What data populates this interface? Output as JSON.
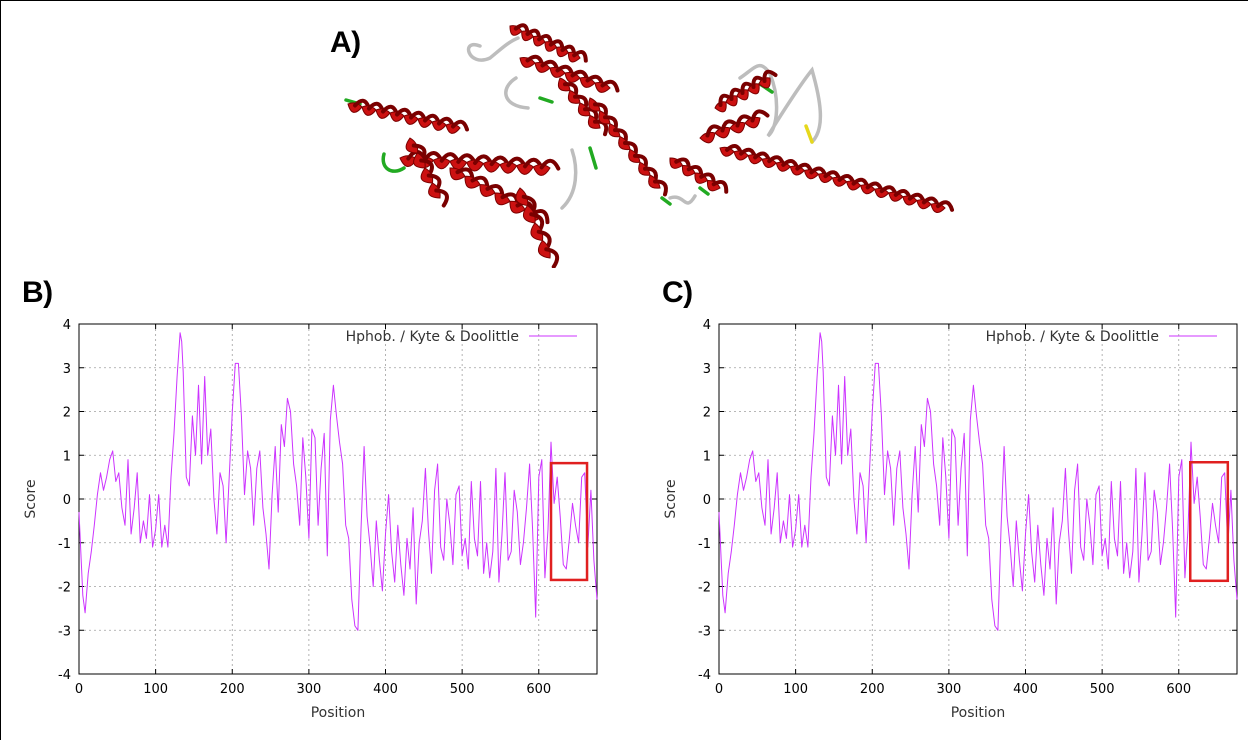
{
  "panels": {
    "a_label": "A)",
    "b_label": "B)",
    "c_label": "C)"
  },
  "structure": {
    "description_colors": {
      "helix": "#cc1111",
      "helix_dark": "#7a0000",
      "coil": "#bdbdbd",
      "turn": "#22aa22",
      "strand": "#e6d81c"
    }
  },
  "colors": {
    "series": "#cc33ff",
    "highlight_box": "#e02020",
    "grid": "#a0a0a0"
  },
  "chart_data": [
    {
      "id": "B",
      "type": "line",
      "title": "",
      "xlabel": "Position",
      "ylabel": "Score",
      "xlim": [
        0,
        676
      ],
      "ylim": [
        -4,
        4
      ],
      "xticks": [
        0,
        100,
        200,
        300,
        400,
        500,
        600
      ],
      "yticks": [
        -4,
        -3,
        -2,
        -1,
        0,
        1,
        2,
        3,
        4
      ],
      "grid": true,
      "legend": {
        "placement": "top-right",
        "entries": [
          "Hphob. / Kyte & Doolittle"
        ]
      },
      "highlight_region": {
        "x": [
          616,
          663
        ],
        "y": [
          -1.85,
          0.82
        ]
      },
      "series": [
        {
          "name": "Hphob. / Kyte & Doolittle",
          "x": [
            0,
            5,
            8,
            12,
            16,
            20,
            24,
            28,
            32,
            36,
            40,
            44,
            48,
            52,
            56,
            60,
            64,
            68,
            72,
            76,
            80,
            84,
            88,
            92,
            96,
            100,
            104,
            108,
            112,
            116,
            120,
            124,
            128,
            132,
            134,
            136,
            140,
            144,
            148,
            152,
            156,
            160,
            164,
            168,
            172,
            176,
            180,
            184,
            188,
            192,
            196,
            200,
            204,
            208,
            212,
            216,
            220,
            224,
            228,
            232,
            236,
            240,
            244,
            248,
            252,
            256,
            260,
            264,
            268,
            272,
            276,
            280,
            284,
            288,
            292,
            296,
            300,
            304,
            308,
            312,
            316,
            320,
            324,
            328,
            332,
            336,
            340,
            344,
            348,
            352,
            356,
            360,
            364,
            368,
            372,
            376,
            380,
            384,
            388,
            392,
            396,
            400,
            404,
            408,
            412,
            416,
            420,
            424,
            428,
            432,
            436,
            440,
            444,
            448,
            452,
            456,
            460,
            464,
            468,
            472,
            476,
            480,
            484,
            488,
            492,
            496,
            500,
            504,
            508,
            512,
            516,
            520,
            524,
            528,
            532,
            536,
            540,
            544,
            548,
            552,
            556,
            560,
            564,
            568,
            572,
            576,
            580,
            584,
            588,
            592,
            596,
            600,
            604,
            608,
            612,
            616,
            620,
            624,
            628,
            632,
            636,
            640,
            644,
            648,
            652,
            656,
            660,
            664,
            668,
            672,
            676
          ],
          "values": [
            -0.3,
            -2.2,
            -2.6,
            -1.7,
            -1.2,
            -0.6,
            0.1,
            0.6,
            0.2,
            0.5,
            0.9,
            1.1,
            0.4,
            0.6,
            -0.2,
            -0.6,
            0.9,
            -0.8,
            -0.2,
            0.6,
            -1.0,
            -0.5,
            -0.9,
            0.1,
            -1.1,
            -0.7,
            0.1,
            -1.1,
            -0.6,
            -1.1,
            0.5,
            1.5,
            2.8,
            3.8,
            3.6,
            2.9,
            0.5,
            0.3,
            1.9,
            1.0,
            2.6,
            0.8,
            2.8,
            1.0,
            1.6,
            0.0,
            -0.8,
            0.6,
            0.3,
            -1.0,
            0.5,
            2.0,
            3.1,
            3.1,
            1.9,
            0.1,
            1.1,
            0.7,
            -0.6,
            0.7,
            1.1,
            -0.2,
            -0.8,
            -1.6,
            0.1,
            1.2,
            -0.3,
            1.7,
            1.2,
            2.3,
            2.0,
            0.8,
            0.3,
            -0.6,
            1.4,
            0.5,
            -0.9,
            1.6,
            1.4,
            -0.6,
            0.7,
            1.5,
            -1.3,
            1.8,
            2.6,
            1.9,
            1.3,
            0.8,
            -0.6,
            -0.9,
            -2.3,
            -2.9,
            -3.0,
            -0.7,
            1.2,
            -0.4,
            -1.1,
            -2.0,
            -0.5,
            -1.4,
            -2.1,
            -0.8,
            0.1,
            -1.2,
            -1.9,
            -0.6,
            -1.5,
            -2.2,
            -0.9,
            -1.6,
            -0.2,
            -2.4,
            -1.0,
            -0.5,
            0.7,
            -0.7,
            -1.7,
            0.2,
            0.8,
            -1.1,
            -1.4,
            0.0,
            -0.6,
            -1.5,
            0.1,
            0.3,
            -1.3,
            -0.9,
            -1.6,
            0.4,
            -0.9,
            -1.3,
            0.4,
            -1.7,
            -1.0,
            -1.8,
            -1.2,
            0.7,
            -1.9,
            -0.8,
            0.6,
            -1.4,
            -1.2,
            0.2,
            -0.3,
            -1.5,
            -1.0,
            -0.2,
            0.8,
            -0.7,
            -2.7,
            0.5,
            0.9,
            -1.8,
            -0.7,
            1.3,
            -0.1,
            0.5,
            -0.4,
            -1.5,
            -1.6,
            -0.9,
            -0.1,
            -0.6,
            -1.0,
            0.5,
            0.6,
            -1.1,
            0.2,
            -1.4,
            -2.3
          ]
        }
      ]
    },
    {
      "id": "C",
      "type": "line",
      "title": "",
      "xlabel": "Position",
      "ylabel": "Score",
      "xlim": [
        0,
        676
      ],
      "ylim": [
        -4,
        4
      ],
      "xticks": [
        0,
        100,
        200,
        300,
        400,
        500,
        600
      ],
      "yticks": [
        -4,
        -3,
        -2,
        -1,
        0,
        1,
        2,
        3,
        4
      ],
      "grid": true,
      "legend": {
        "placement": "top-right",
        "entries": [
          "Hphob. / Kyte & Doolittle"
        ]
      },
      "highlight_region": {
        "x": [
          615,
          664
        ],
        "y": [
          -1.87,
          0.84
        ]
      },
      "series": [
        {
          "name": "Hphob. / Kyte & Doolittle",
          "x": [
            0,
            5,
            8,
            12,
            16,
            20,
            24,
            28,
            32,
            36,
            40,
            44,
            48,
            52,
            56,
            60,
            64,
            68,
            72,
            76,
            80,
            84,
            88,
            92,
            96,
            100,
            104,
            108,
            112,
            116,
            120,
            124,
            128,
            132,
            134,
            136,
            140,
            144,
            148,
            152,
            156,
            160,
            164,
            168,
            172,
            176,
            180,
            184,
            188,
            192,
            196,
            200,
            204,
            208,
            212,
            216,
            220,
            224,
            228,
            232,
            236,
            240,
            244,
            248,
            252,
            256,
            260,
            264,
            268,
            272,
            276,
            280,
            284,
            288,
            292,
            296,
            300,
            304,
            308,
            312,
            316,
            320,
            324,
            328,
            332,
            336,
            340,
            344,
            348,
            352,
            356,
            360,
            364,
            368,
            372,
            376,
            380,
            384,
            388,
            392,
            396,
            400,
            404,
            408,
            412,
            416,
            420,
            424,
            428,
            432,
            436,
            440,
            444,
            448,
            452,
            456,
            460,
            464,
            468,
            472,
            476,
            480,
            484,
            488,
            492,
            496,
            500,
            504,
            508,
            512,
            516,
            520,
            524,
            528,
            532,
            536,
            540,
            544,
            548,
            552,
            556,
            560,
            564,
            568,
            572,
            576,
            580,
            584,
            588,
            592,
            596,
            600,
            604,
            608,
            612,
            616,
            620,
            624,
            628,
            632,
            636,
            640,
            644,
            648,
            652,
            656,
            660,
            664,
            668,
            672,
            676
          ],
          "values": [
            -0.3,
            -2.2,
            -2.6,
            -1.7,
            -1.2,
            -0.6,
            0.1,
            0.6,
            0.2,
            0.5,
            0.9,
            1.1,
            0.4,
            0.6,
            -0.2,
            -0.6,
            0.9,
            -0.8,
            -0.2,
            0.6,
            -1.0,
            -0.5,
            -0.9,
            0.1,
            -1.1,
            -0.7,
            0.1,
            -1.1,
            -0.6,
            -1.1,
            0.5,
            1.5,
            2.8,
            3.8,
            3.6,
            2.9,
            0.5,
            0.3,
            1.9,
            1.0,
            2.6,
            0.8,
            2.8,
            1.0,
            1.6,
            0.0,
            -0.8,
            0.6,
            0.3,
            -1.0,
            0.5,
            2.0,
            3.1,
            3.1,
            1.9,
            0.1,
            1.1,
            0.7,
            -0.6,
            0.7,
            1.1,
            -0.2,
            -0.8,
            -1.6,
            0.1,
            1.2,
            -0.3,
            1.7,
            1.2,
            2.3,
            2.0,
            0.8,
            0.3,
            -0.6,
            1.4,
            0.5,
            -0.9,
            1.6,
            1.4,
            -0.6,
            0.7,
            1.5,
            -1.3,
            1.8,
            2.6,
            1.9,
            1.3,
            0.8,
            -0.6,
            -0.9,
            -2.3,
            -2.9,
            -3.0,
            -0.7,
            1.2,
            -0.4,
            -1.1,
            -2.0,
            -0.5,
            -1.4,
            -2.1,
            -0.8,
            0.1,
            -1.2,
            -1.9,
            -0.6,
            -1.5,
            -2.2,
            -0.9,
            -1.6,
            -0.2,
            -2.4,
            -1.0,
            -0.5,
            0.7,
            -0.7,
            -1.7,
            0.2,
            0.8,
            -1.1,
            -1.4,
            0.0,
            -0.6,
            -1.5,
            0.1,
            0.3,
            -1.3,
            -0.9,
            -1.6,
            0.4,
            -0.9,
            -1.3,
            0.4,
            -1.7,
            -1.0,
            -1.8,
            -1.2,
            0.7,
            -1.9,
            -0.8,
            0.6,
            -1.4,
            -1.2,
            0.2,
            -0.3,
            -1.5,
            -1.0,
            -0.2,
            0.8,
            -0.7,
            -2.7,
            0.5,
            0.9,
            -1.8,
            -0.7,
            1.3,
            -0.1,
            0.5,
            -0.4,
            -1.5,
            -1.6,
            -0.9,
            -0.1,
            -0.6,
            -1.0,
            0.5,
            0.6,
            -1.1,
            0.2,
            -1.4,
            -2.3
          ]
        }
      ]
    }
  ]
}
